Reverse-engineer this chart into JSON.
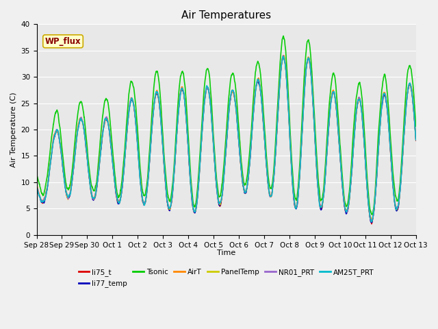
{
  "title": "Air Temperatures",
  "xlabel": "Time",
  "ylabel": "Air Temperature (C)",
  "ylim": [
    0,
    40
  ],
  "bg_color": "#e8e8e8",
  "fig_color": "#f0f0f0",
  "annotation_text": "WP_flux",
  "annotation_bg": "#ffffcc",
  "annotation_border": "#ccaa00",
  "annotation_text_color": "#880000",
  "series": [
    {
      "name": "li75_t",
      "color": "#dd0000",
      "lw": 1.0
    },
    {
      "name": "li77_temp",
      "color": "#0000bb",
      "lw": 1.0
    },
    {
      "name": "Tsonic",
      "color": "#00cc00",
      "lw": 1.2
    },
    {
      "name": "AirT",
      "color": "#ff8800",
      "lw": 1.0
    },
    {
      "name": "PanelTemp",
      "color": "#cccc00",
      "lw": 1.0
    },
    {
      "name": "NR01_PRT",
      "color": "#9966cc",
      "lw": 1.0
    },
    {
      "name": "AM25T_PRT",
      "color": "#00bbcc",
      "lw": 1.2
    }
  ],
  "xtick_labels": [
    "Sep 28",
    "Sep 29",
    "Sep 30",
    "Oct 1",
    "Oct 2",
    "Oct 3",
    "Oct 4",
    "Oct 5",
    "Oct 6",
    "Oct 7",
    "Oct 8",
    "Oct 9",
    "Oct 10",
    "Oct 11",
    "Oct 12",
    "Oct 13"
  ],
  "n_days": 15,
  "pts_per_day": 144
}
